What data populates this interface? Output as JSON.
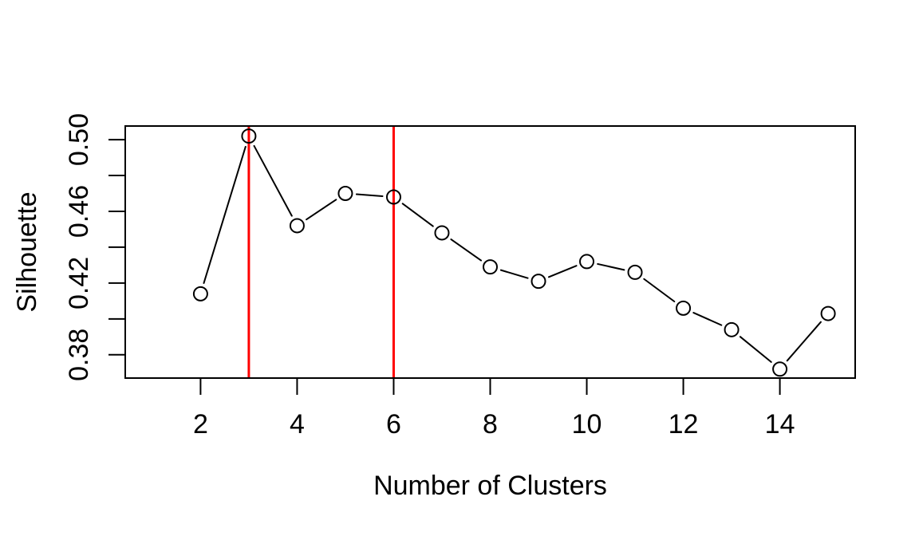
{
  "figure": {
    "background_color": "#FFFFFF"
  },
  "chart_data": {
    "type": "line",
    "subtype": "points-and-lines (R type='b', open circle markers)",
    "title": "",
    "xlabel": "Number of Clusters",
    "ylabel": "Silhouette",
    "x": [
      2,
      3,
      4,
      5,
      6,
      7,
      8,
      9,
      10,
      11,
      12,
      13,
      14,
      15
    ],
    "y": [
      0.414,
      0.502,
      0.452,
      0.47,
      0.468,
      0.448,
      0.429,
      0.421,
      0.432,
      0.426,
      0.406,
      0.394,
      0.372,
      0.403
    ],
    "xlim": [
      0.44,
      15.56
    ],
    "ylim": [
      0.367,
      0.5076
    ],
    "x_ticks": [
      {
        "value": 2,
        "label": "2"
      },
      {
        "value": 4,
        "label": "4"
      },
      {
        "value": 6,
        "label": "6"
      },
      {
        "value": 8,
        "label": "8"
      },
      {
        "value": 10,
        "label": "10"
      },
      {
        "value": 12,
        "label": "12"
      },
      {
        "value": 14,
        "label": "14"
      }
    ],
    "y_ticks": [
      {
        "value": 0.38,
        "label": "0.38"
      },
      {
        "value": 0.4,
        "label": ""
      },
      {
        "value": 0.42,
        "label": "0.42"
      },
      {
        "value": 0.44,
        "label": ""
      },
      {
        "value": 0.46,
        "label": "0.46"
      },
      {
        "value": 0.48,
        "label": ""
      },
      {
        "value": 0.5,
        "label": "0.50"
      }
    ],
    "vlines": [
      {
        "x": 3,
        "color": "#FF0000"
      },
      {
        "x": 6,
        "color": "#FF0000"
      }
    ],
    "grid": false,
    "legend": null,
    "marker": "open-circle",
    "colors": {
      "series_line": "#000000",
      "marker_stroke": "#000000",
      "frame": "#000000",
      "tick": "#000000",
      "text": "#000000",
      "vline": "#FF0000",
      "background": "#FFFFFF"
    }
  }
}
